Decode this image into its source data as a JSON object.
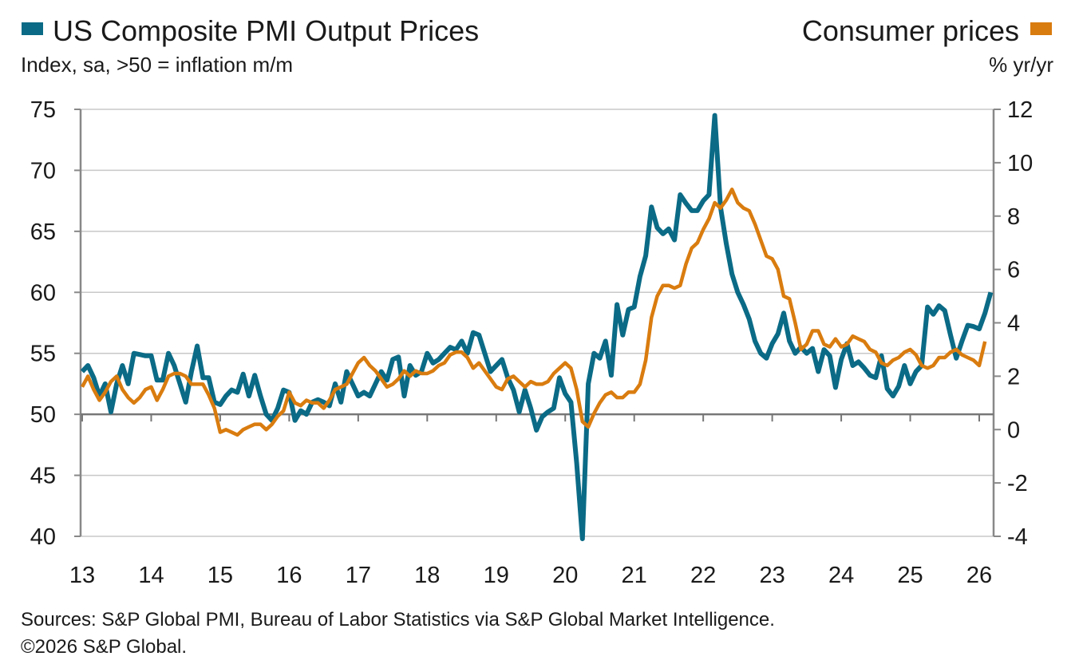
{
  "chart_data": {
    "type": "line",
    "title": "US Composite PMI Output Prices",
    "subtitle": "Index, sa, >50 = inflation m/m",
    "right_title": "Consumer prices",
    "right_subtitle": "% yr/yr",
    "x_start": "2013-01",
    "frequency": "monthly",
    "x_tick_labels": [
      "13",
      "14",
      "15",
      "16",
      "17",
      "18",
      "19",
      "20",
      "21",
      "22",
      "23",
      "24",
      "25",
      "26"
    ],
    "y_left": {
      "range": [
        40,
        75
      ],
      "ticks": [
        "75",
        "70",
        "65",
        "60",
        "55",
        "50",
        "45",
        "40"
      ]
    },
    "y_right": {
      "range": [
        -4,
        12
      ],
      "ticks": [
        "12",
        "10",
        "8",
        "6",
        "4",
        "2",
        "0",
        "-2",
        "-4"
      ]
    },
    "grid": true,
    "legend": "top-left and top-right",
    "series": [
      {
        "name": "US Composite PMI Output Prices",
        "axis": "left",
        "color": "#0b6b86",
        "values": [
          53.5,
          54,
          53,
          51.5,
          52.5,
          50.2,
          52.5,
          54,
          52.5,
          55,
          54.9,
          54.8,
          54.8,
          52.8,
          52.8,
          55,
          54,
          52.5,
          51,
          53.5,
          55.6,
          53,
          53,
          51,
          50.8,
          51.5,
          52,
          51.8,
          53.3,
          51.5,
          53.2,
          51.5,
          50,
          49.5,
          50.5,
          52,
          51.8,
          49.5,
          50.3,
          50,
          51,
          51.2,
          51,
          50.7,
          52.5,
          51,
          53.5,
          52.5,
          51.5,
          51.8,
          51.5,
          52.5,
          53.5,
          52.8,
          54.5,
          54.7,
          51.5,
          54,
          53.2,
          53.5,
          55,
          54.2,
          54.5,
          55,
          55.5,
          55.3,
          56,
          55,
          56.7,
          56.5,
          55,
          53.5,
          54,
          54.5,
          53,
          52,
          50.2,
          52,
          50.5,
          48.7,
          49.8,
          50.2,
          50.5,
          53,
          51.7,
          51,
          46,
          39.8,
          52.5,
          55,
          54.6,
          56,
          53.2,
          59,
          56.5,
          58.6,
          58.8,
          61.3,
          63,
          67,
          65.3,
          64.8,
          65.2,
          64.3,
          68,
          67.3,
          66.7,
          66.7,
          67.5,
          68,
          74.5,
          67,
          64,
          61.5,
          60,
          59,
          57.8,
          56,
          55,
          54.6,
          55.8,
          56.6,
          58.3,
          56,
          55,
          55.5,
          55,
          55.4,
          53.5,
          55.3,
          54.8,
          52.2,
          54.5,
          55.8,
          54,
          54.3,
          53.8,
          53.2,
          53,
          54.8,
          52.1,
          51.5,
          52.3,
          54,
          52.5,
          53.5,
          54,
          58.8,
          58.2,
          58.9,
          58.5,
          56.5,
          54.6,
          56,
          57.3,
          57.2,
          57,
          58.3,
          60
        ]
      },
      {
        "name": "Consumer prices",
        "axis": "right",
        "color": "#d97c0f",
        "values": [
          1.6,
          2.0,
          1.5,
          1.1,
          1.4,
          1.8,
          2.0,
          1.5,
          1.2,
          1.0,
          1.2,
          1.5,
          1.6,
          1.1,
          1.5,
          2.0,
          2.1,
          2.1,
          2.0,
          1.7,
          1.7,
          1.7,
          1.3,
          0.8,
          -0.1,
          0.0,
          -0.1,
          -0.2,
          0.0,
          0.1,
          0.2,
          0.2,
          0.0,
          0.2,
          0.5,
          0.7,
          1.4,
          1.0,
          0.9,
          1.1,
          1.0,
          1.0,
          0.8,
          1.1,
          1.5,
          1.6,
          1.7,
          2.1,
          2.5,
          2.7,
          2.4,
          2.2,
          1.9,
          1.6,
          1.7,
          1.9,
          2.2,
          2.0,
          2.2,
          2.1,
          2.1,
          2.2,
          2.4,
          2.5,
          2.8,
          2.9,
          2.9,
          2.7,
          2.3,
          2.5,
          2.2,
          1.9,
          1.6,
          1.5,
          1.9,
          2.0,
          1.8,
          1.6,
          1.8,
          1.7,
          1.7,
          1.8,
          2.1,
          2.3,
          2.5,
          2.3,
          1.5,
          0.3,
          0.1,
          0.6,
          1.0,
          1.3,
          1.4,
          1.2,
          1.2,
          1.4,
          1.4,
          1.7,
          2.6,
          4.2,
          5.0,
          5.4,
          5.4,
          5.3,
          5.4,
          6.2,
          6.8,
          7.0,
          7.5,
          7.9,
          8.5,
          8.3,
          8.6,
          9.0,
          8.5,
          8.3,
          8.2,
          7.7,
          7.1,
          6.5,
          6.4,
          6.0,
          5.0,
          4.9,
          4.0,
          3.0,
          3.2,
          3.7,
          3.7,
          3.2,
          3.1,
          3.4,
          3.1,
          3.2,
          3.5,
          3.4,
          3.3,
          3.0,
          2.9,
          2.5,
          2.4,
          2.6,
          2.7,
          2.9,
          3.0,
          2.8,
          2.4,
          2.3,
          2.4,
          2.7,
          2.7,
          2.9,
          3.0,
          2.8,
          2.7,
          2.6,
          2.4,
          3.3
        ]
      }
    ],
    "footer": [
      "Sources: S&P Global PMI, Bureau of Labor Statistics via S&P Global Market Intelligence.",
      "©2026 S&P Global."
    ]
  }
}
